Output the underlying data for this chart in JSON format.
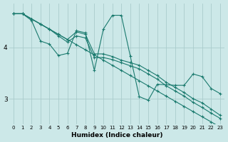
{
  "xlabel": "Humidex (Indice chaleur)",
  "bg_color": "#cce8e8",
  "grid_color": "#aacccc",
  "line_color": "#1a7a6e",
  "xlim": [
    -0.5,
    23.5
  ],
  "ylim": [
    2.5,
    4.85
  ],
  "yticks": [
    3,
    4
  ],
  "xtick_labels": [
    "0",
    "1",
    "2",
    "3",
    "4",
    "5",
    "6",
    "7",
    "8",
    "9",
    "10",
    "11",
    "12",
    "13",
    "14",
    "15",
    "16",
    "17",
    "18",
    "19",
    "20",
    "21",
    "22",
    "23"
  ],
  "series": [
    [
      4.65,
      4.65,
      4.55,
      4.45,
      4.35,
      4.25,
      4.15,
      4.05,
      3.95,
      3.85,
      3.75,
      3.65,
      3.55,
      3.45,
      3.35,
      3.25,
      3.15,
      3.05,
      2.95,
      2.85,
      2.75,
      2.65,
      2.55,
      2.45
    ],
    [
      4.65,
      4.65,
      4.52,
      4.12,
      4.06,
      3.84,
      3.88,
      4.32,
      4.28,
      3.55,
      4.35,
      4.62,
      4.62,
      3.83,
      3.04,
      2.97,
      3.28,
      3.27,
      3.26,
      3.26,
      3.48,
      3.43,
      3.2,
      3.1
    ],
    [
      4.65,
      4.65,
      4.55,
      4.45,
      4.35,
      4.25,
      4.15,
      4.3,
      4.25,
      3.87,
      3.87,
      3.82,
      3.75,
      3.7,
      3.65,
      3.55,
      3.45,
      3.32,
      3.22,
      3.12,
      3.0,
      2.92,
      2.8,
      2.68
    ],
    [
      4.65,
      4.65,
      4.55,
      4.45,
      4.35,
      4.22,
      4.1,
      4.22,
      4.18,
      3.8,
      3.8,
      3.76,
      3.7,
      3.64,
      3.58,
      3.48,
      3.38,
      3.25,
      3.15,
      3.05,
      2.93,
      2.83,
      2.72,
      2.62
    ]
  ]
}
